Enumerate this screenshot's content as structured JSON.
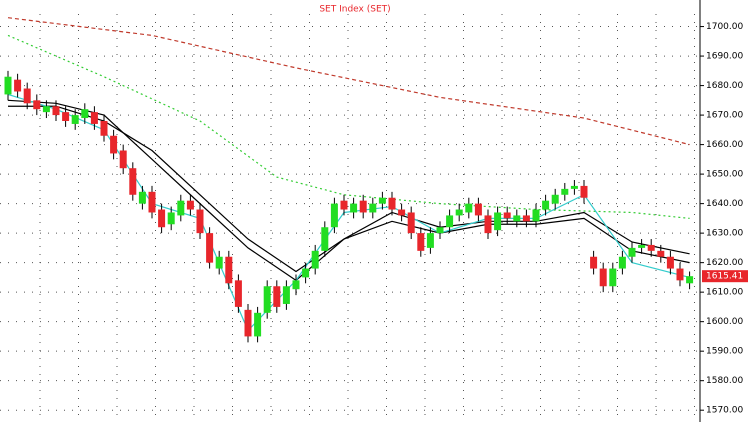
{
  "chart_data": {
    "type": "candlestick",
    "title": "SET Index (SET)",
    "ylim": [
      1566,
      1709
    ],
    "yticks": [
      {
        "value": 1700,
        "label": "1700.00"
      },
      {
        "value": 1690,
        "label": "1690.00"
      },
      {
        "value": 1680,
        "label": "1680.00"
      },
      {
        "value": 1670,
        "label": "1670.00"
      },
      {
        "value": 1660,
        "label": "1660.00"
      },
      {
        "value": 1650,
        "label": "1650.00"
      },
      {
        "value": 1640,
        "label": "1640.00"
      },
      {
        "value": 1630,
        "label": "1630.00"
      },
      {
        "value": 1620,
        "label": "1620.00"
      },
      {
        "value": 1610,
        "label": "1610.00"
      },
      {
        "value": 1600,
        "label": "1600.00"
      },
      {
        "value": 1590,
        "label": "1590.00"
      },
      {
        "value": 1580,
        "label": "1580.00"
      },
      {
        "value": 1570,
        "label": "1570.00"
      }
    ],
    "grid": true,
    "up_color": "#22dd22",
    "down_color": "#e8262b",
    "open": [
      1677,
      1682,
      1679,
      1675,
      1671,
      1673,
      1671,
      1667,
      1669,
      1671,
      1668,
      1663,
      1658,
      1652,
      1640,
      1644,
      1638,
      1633,
      1636,
      1641,
      1638,
      1630,
      1618,
      1622,
      1614,
      1604,
      1595,
      1603,
      1612,
      1606,
      1611,
      1615,
      1618,
      1624,
      1632,
      1641,
      1637,
      1641,
      1637,
      1640,
      1642,
      1638,
      1637,
      1630,
      1625,
      1630,
      1632,
      1636,
      1637,
      1640,
      1636,
      1631,
      1637,
      1634,
      1636,
      1634,
      1638,
      1640,
      1643,
      1645,
      1646,
      1622,
      1618,
      1612,
      1618,
      1622,
      1625,
      1626,
      1624,
      1622,
      1618,
      1613
    ],
    "high": [
      1685,
      1684,
      1681,
      1677,
      1675,
      1675,
      1673,
      1672,
      1674,
      1673,
      1670,
      1665,
      1660,
      1654,
      1646,
      1646,
      1640,
      1639,
      1643,
      1643,
      1640,
      1632,
      1624,
      1624,
      1616,
      1606,
      1605,
      1614,
      1614,
      1614,
      1616,
      1620,
      1626,
      1634,
      1642,
      1643,
      1642,
      1643,
      1642,
      1644,
      1644,
      1640,
      1639,
      1632,
      1632,
      1634,
      1638,
      1640,
      1642,
      1642,
      1638,
      1639,
      1639,
      1638,
      1638,
      1640,
      1643,
      1645,
      1647,
      1648,
      1648,
      1624,
      1620,
      1620,
      1624,
      1627,
      1628,
      1628,
      1626,
      1624,
      1620,
      1617
    ],
    "low": [
      1675,
      1676,
      1672,
      1670,
      1669,
      1668,
      1666,
      1665,
      1667,
      1665,
      1661,
      1655,
      1650,
      1641,
      1638,
      1635,
      1630,
      1631,
      1634,
      1636,
      1628,
      1618,
      1616,
      1611,
      1603,
      1593,
      1593,
      1601,
      1603,
      1604,
      1609,
      1613,
      1616,
      1622,
      1630,
      1636,
      1635,
      1635,
      1635,
      1638,
      1636,
      1634,
      1628,
      1622,
      1623,
      1628,
      1630,
      1634,
      1635,
      1634,
      1628,
      1629,
      1633,
      1632,
      1632,
      1632,
      1636,
      1638,
      1641,
      1643,
      1640,
      1616,
      1610,
      1610,
      1616,
      1620,
      1623,
      1622,
      1620,
      1616,
      1612,
      1611
    ],
    "close": [
      1683,
      1678,
      1674,
      1672,
      1673,
      1670,
      1668,
      1670,
      1672,
      1667,
      1663,
      1657,
      1652,
      1643,
      1644,
      1637,
      1632,
      1637,
      1641,
      1638,
      1630,
      1620,
      1622,
      1613,
      1605,
      1595,
      1603,
      1612,
      1605,
      1612,
      1614,
      1618,
      1624,
      1632,
      1640,
      1638,
      1640,
      1637,
      1640,
      1642,
      1638,
      1636,
      1630,
      1624,
      1630,
      1632,
      1636,
      1638,
      1640,
      1636,
      1630,
      1637,
      1635,
      1636,
      1634,
      1638,
      1641,
      1643,
      1645,
      1646,
      1642,
      1618,
      1612,
      1618,
      1622,
      1625,
      1626,
      1624,
      1622,
      1618,
      1614,
      1615.41
    ],
    "last_label": "1615.41",
    "last_color": "#e8262b",
    "lines": [
      {
        "color": "#c0392b",
        "dash": "4 3",
        "x": [
          0,
          15,
          30,
          45,
          60,
          71
        ],
        "values": [
          1703,
          1697,
          1686,
          1676,
          1669,
          1660
        ]
      },
      {
        "color": "#33cc33",
        "dash": "2 3",
        "x": [
          0,
          10,
          20,
          28,
          35,
          45,
          55,
          65,
          71
        ],
        "values": [
          1697,
          1683,
          1668,
          1649,
          1643,
          1640,
          1638,
          1637,
          1635
        ]
      },
      {
        "color": "#000000",
        "dash": "",
        "x": [
          0,
          5,
          10,
          15,
          20,
          25,
          30,
          35,
          40,
          45,
          50,
          55,
          60,
          65,
          71
        ],
        "values": [
          1675,
          1674,
          1670,
          1655,
          1640,
          1625,
          1614,
          1628,
          1637,
          1632,
          1634,
          1634,
          1637,
          1627,
          1623
        ]
      },
      {
        "color": "#000000",
        "dash": "",
        "x": [
          0,
          5,
          10,
          15,
          20,
          25,
          30,
          35,
          40,
          45,
          50,
          55,
          60,
          65,
          71
        ],
        "values": [
          1673,
          1673,
          1668,
          1658,
          1643,
          1628,
          1617,
          1628,
          1634,
          1630,
          1633,
          1633,
          1635,
          1624,
          1620
        ]
      },
      {
        "color": "#33cccc",
        "dash": "",
        "x": [
          0,
          5,
          10,
          15,
          20,
          25,
          30,
          35,
          40,
          45,
          50,
          55,
          60,
          65,
          71
        ],
        "values": [
          1677,
          1672,
          1665,
          1640,
          1635,
          1597,
          1614,
          1637,
          1639,
          1630,
          1635,
          1635,
          1643,
          1620,
          1615
        ]
      }
    ]
  }
}
